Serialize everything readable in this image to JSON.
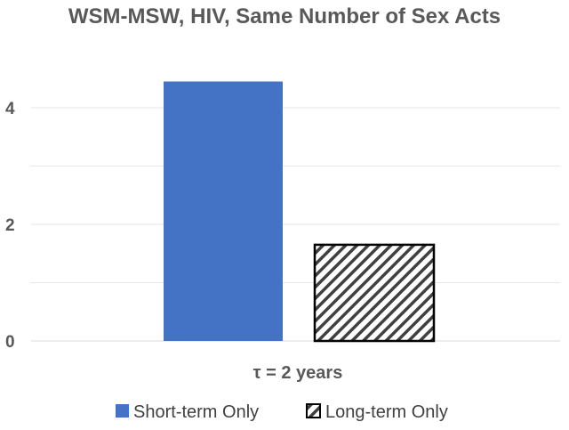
{
  "chart_data": {
    "type": "bar",
    "title": "WSM-MSW, HIV, Same Number of Sex Acts",
    "categories": [
      "τ = 2 years"
    ],
    "series": [
      {
        "name": "Short-term Only",
        "values": [
          4.45
        ],
        "color": "#4472C4",
        "fill": "solid"
      },
      {
        "name": "Long-term Only",
        "values": [
          1.65
        ],
        "color": "#404040",
        "fill": "diagonal-hatch"
      }
    ],
    "yticks": [
      "0",
      "2",
      "4"
    ],
    "ylim": [
      0,
      5
    ],
    "grid": true,
    "legend": "bottom"
  }
}
